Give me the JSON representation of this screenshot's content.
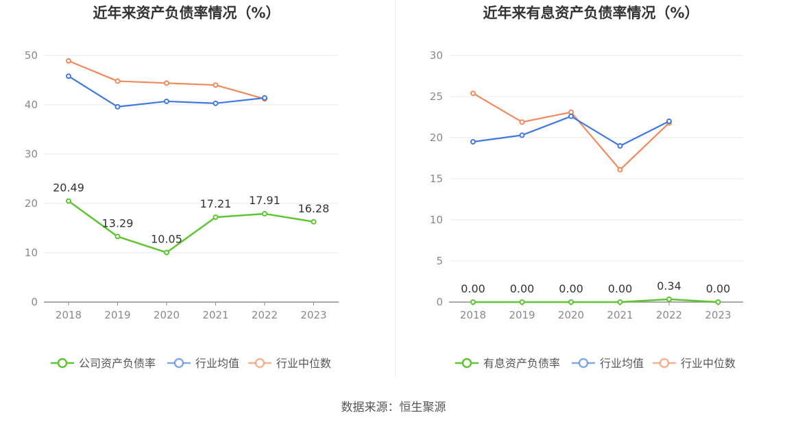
{
  "source_text": "数据来源：恒生聚源",
  "colors": {
    "company": "#5cc52f",
    "industry_avg": "#3f78e0",
    "industry_median": "#f2895a",
    "grid": "#e6e9f2",
    "axis": "#8c8c8c",
    "tick_text": "#888888",
    "label_text": "#333333",
    "title_text": "#333333",
    "legend_text": "#555555"
  },
  "chart_data": [
    {
      "type": "line",
      "title": "近年来资产负债率情况（%）",
      "categories": [
        "2018",
        "2019",
        "2020",
        "2021",
        "2022",
        "2023"
      ],
      "ylim": [
        0,
        50
      ],
      "yticks": [
        0,
        10,
        20,
        30,
        40,
        50
      ],
      "grid": true,
      "legend_position": "bottom",
      "series": [
        {
          "name": "公司资产负债率",
          "color_key": "company",
          "values": [
            20.49,
            13.29,
            10.05,
            17.21,
            17.91,
            16.28
          ],
          "labels": [
            "20.49",
            "13.29",
            "10.05",
            "17.21",
            "17.91",
            "16.28"
          ]
        },
        {
          "name": "行业均值",
          "color_key": "industry_avg",
          "values": [
            45.8,
            39.6,
            40.7,
            40.3,
            41.4,
            null
          ]
        },
        {
          "name": "行业中位数",
          "color_key": "industry_median",
          "values": [
            48.9,
            44.8,
            44.4,
            44.0,
            41.2,
            null
          ]
        }
      ]
    },
    {
      "type": "line",
      "title": "近年来有息资产负债率情况（%）",
      "categories": [
        "2018",
        "2019",
        "2020",
        "2021",
        "2022",
        "2023"
      ],
      "ylim": [
        0,
        30
      ],
      "yticks": [
        0,
        5,
        10,
        15,
        20,
        25,
        30
      ],
      "grid": true,
      "legend_position": "bottom",
      "series": [
        {
          "name": "有息资产负债率",
          "color_key": "company",
          "values": [
            0.0,
            0.0,
            0.0,
            0.0,
            0.34,
            0.0
          ],
          "labels": [
            "0.00",
            "0.00",
            "0.00",
            "0.00",
            "0.34",
            "0.00"
          ]
        },
        {
          "name": "行业均值",
          "color_key": "industry_avg",
          "values": [
            19.5,
            20.3,
            22.6,
            19.0,
            22.0,
            null
          ]
        },
        {
          "name": "行业中位数",
          "color_key": "industry_median",
          "values": [
            25.4,
            21.9,
            23.1,
            16.1,
            21.8,
            null
          ]
        }
      ]
    }
  ]
}
